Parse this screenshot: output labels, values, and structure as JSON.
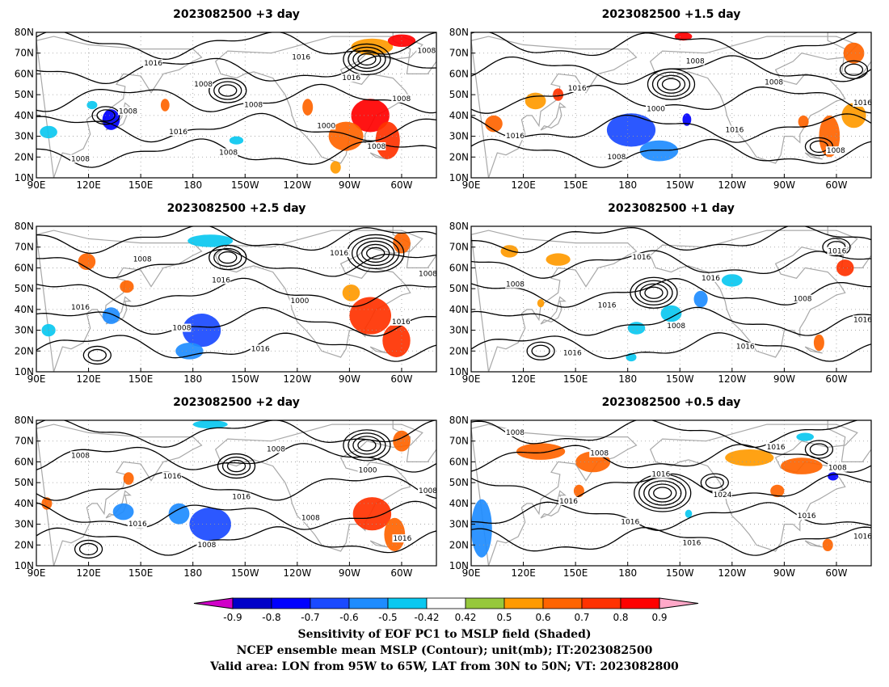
{
  "chart_data": {
    "type": "heatmap",
    "panels": [
      {
        "title": "2023082500 +3 day",
        "contour_labels": [
          "1008",
          "1008",
          "1016",
          "1016",
          "1008",
          "1008",
          "1008",
          "1016",
          "1000",
          "1016",
          "1008",
          "1008",
          "1008"
        ],
        "blobs": [
          {
            "lon": 133,
            "lat": 38,
            "rx": 5,
            "ry": 5,
            "v": -0.75
          },
          {
            "lon": 122,
            "lat": 45,
            "rx": 3,
            "ry": 2,
            "v": -0.5
          },
          {
            "lon": 97,
            "lat": 32,
            "rx": 5,
            "ry": 3,
            "v": -0.5
          },
          {
            "lon": 164,
            "lat": 45,
            "rx": 2.5,
            "ry": 3,
            "v": 0.6
          },
          {
            "lon": 205,
            "lat": 28,
            "rx": 4,
            "ry": 2,
            "v": -0.5
          },
          {
            "lon": 246,
            "lat": 44,
            "rx": 3,
            "ry": 4,
            "v": 0.6
          },
          {
            "lon": 282,
            "lat": 40,
            "rx": 11,
            "ry": 8,
            "v": 0.85
          },
          {
            "lon": 268,
            "lat": 30,
            "rx": 10,
            "ry": 7,
            "v": 0.65
          },
          {
            "lon": 292,
            "lat": 28,
            "rx": 7,
            "ry": 9,
            "v": 0.7
          },
          {
            "lon": 283,
            "lat": 73,
            "rx": 12,
            "ry": 4,
            "v": 0.5
          },
          {
            "lon": 300,
            "lat": 76,
            "rx": 8,
            "ry": 3,
            "v": 0.85
          },
          {
            "lon": 262,
            "lat": 15,
            "rx": 3,
            "ry": 3,
            "v": 0.5
          }
        ]
      },
      {
        "title": "2023082500 +1.5 day",
        "contour_labels": [
          "1016",
          "1016",
          "1008",
          "1000",
          "1008",
          "1016",
          "1008",
          "1008",
          "1016"
        ],
        "blobs": [
          {
            "lon": 182,
            "lat": 33,
            "rx": 14,
            "ry": 8,
            "v": -0.65
          },
          {
            "lon": 198,
            "lat": 23,
            "rx": 11,
            "ry": 5,
            "v": -0.55
          },
          {
            "lon": 214,
            "lat": 38,
            "rx": 2.5,
            "ry": 3,
            "v": -0.75
          },
          {
            "lon": 127,
            "lat": 47,
            "rx": 6,
            "ry": 4,
            "v": 0.55
          },
          {
            "lon": 140,
            "lat": 50,
            "rx": 3,
            "ry": 3,
            "v": 0.7
          },
          {
            "lon": 103,
            "lat": 36,
            "rx": 5,
            "ry": 4,
            "v": 0.6
          },
          {
            "lon": 296,
            "lat": 30,
            "rx": 6,
            "ry": 10,
            "v": 0.65
          },
          {
            "lon": 310,
            "lat": 40,
            "rx": 7,
            "ry": 6,
            "v": 0.55
          },
          {
            "lon": 281,
            "lat": 37,
            "rx": 3,
            "ry": 3,
            "v": 0.6
          },
          {
            "lon": 310,
            "lat": 70,
            "rx": 6,
            "ry": 5,
            "v": 0.6
          },
          {
            "lon": 212,
            "lat": 78,
            "rx": 5,
            "ry": 2,
            "v": 0.85
          }
        ]
      },
      {
        "title": "2023082500 +2.5 day",
        "contour_labels": [
          "1016",
          "1008",
          "1008",
          "1016",
          "1016",
          "1000",
          "1016",
          "1016",
          "1008"
        ],
        "blobs": [
          {
            "lon": 185,
            "lat": 30,
            "rx": 11,
            "ry": 8,
            "v": -0.65
          },
          {
            "lon": 178,
            "lat": 20,
            "rx": 8,
            "ry": 4,
            "v": -0.55
          },
          {
            "lon": 190,
            "lat": 73,
            "rx": 13,
            "ry": 3,
            "v": -0.5
          },
          {
            "lon": 133,
            "lat": 37,
            "rx": 5,
            "ry": 4,
            "v": -0.6
          },
          {
            "lon": 97,
            "lat": 30,
            "rx": 4,
            "ry": 3,
            "v": -0.5
          },
          {
            "lon": 119,
            "lat": 63,
            "rx": 5,
            "ry": 4,
            "v": 0.6
          },
          {
            "lon": 142,
            "lat": 51,
            "rx": 4,
            "ry": 3,
            "v": 0.6
          },
          {
            "lon": 282,
            "lat": 37,
            "rx": 12,
            "ry": 9,
            "v": 0.75
          },
          {
            "lon": 297,
            "lat": 25,
            "rx": 8,
            "ry": 8,
            "v": 0.7
          },
          {
            "lon": 271,
            "lat": 48,
            "rx": 5,
            "ry": 4,
            "v": 0.55
          },
          {
            "lon": 300,
            "lat": 72,
            "rx": 5,
            "ry": 5,
            "v": 0.6
          }
        ]
      },
      {
        "title": "2023082500 +1 day",
        "contour_labels": [
          "1008",
          "1016",
          "1016",
          "1016",
          "1008",
          "1016",
          "1016",
          "1008",
          "1016",
          "1016"
        ],
        "blobs": [
          {
            "lon": 205,
            "lat": 38,
            "rx": 6,
            "ry": 4,
            "v": -0.5
          },
          {
            "lon": 185,
            "lat": 31,
            "rx": 5,
            "ry": 3,
            "v": -0.5
          },
          {
            "lon": 222,
            "lat": 45,
            "rx": 4,
            "ry": 4,
            "v": -0.55
          },
          {
            "lon": 240,
            "lat": 54,
            "rx": 6,
            "ry": 3,
            "v": -0.5
          },
          {
            "lon": 182,
            "lat": 17,
            "rx": 3,
            "ry": 2,
            "v": -0.5
          },
          {
            "lon": 112,
            "lat": 68,
            "rx": 5,
            "ry": 3,
            "v": 0.5
          },
          {
            "lon": 140,
            "lat": 64,
            "rx": 7,
            "ry": 3,
            "v": 0.5
          },
          {
            "lon": 290,
            "lat": 24,
            "rx": 3,
            "ry": 4,
            "v": 0.6
          },
          {
            "lon": 305,
            "lat": 60,
            "rx": 5,
            "ry": 4,
            "v": 0.7
          },
          {
            "lon": 130,
            "lat": 43,
            "rx": 2,
            "ry": 2,
            "v": 0.5
          }
        ]
      },
      {
        "title": "2023082500 +2 day",
        "contour_labels": [
          "1008",
          "1016",
          "1016",
          "1008",
          "1016",
          "1008",
          "1008",
          "1000",
          "1016",
          "1008"
        ],
        "blobs": [
          {
            "lon": 190,
            "lat": 30,
            "rx": 12,
            "ry": 8,
            "v": -0.65
          },
          {
            "lon": 172,
            "lat": 35,
            "rx": 6,
            "ry": 5,
            "v": -0.55
          },
          {
            "lon": 140,
            "lat": 36,
            "rx": 6,
            "ry": 4,
            "v": -0.55
          },
          {
            "lon": 190,
            "lat": 78,
            "rx": 10,
            "ry": 2,
            "v": -0.5
          },
          {
            "lon": 283,
            "lat": 35,
            "rx": 11,
            "ry": 8,
            "v": 0.75
          },
          {
            "lon": 296,
            "lat": 25,
            "rx": 6,
            "ry": 8,
            "v": 0.65
          },
          {
            "lon": 96,
            "lat": 40,
            "rx": 3,
            "ry": 3,
            "v": 0.6
          },
          {
            "lon": 143,
            "lat": 52,
            "rx": 3,
            "ry": 3,
            "v": 0.6
          },
          {
            "lon": 300,
            "lat": 70,
            "rx": 5,
            "ry": 5,
            "v": 0.6
          }
        ]
      },
      {
        "title": "2023082500 +0.5 day",
        "contour_labels": [
          "1008",
          "1016",
          "1008",
          "1016",
          "1016",
          "1016",
          "1024",
          "1016",
          "1016",
          "1008",
          "1016"
        ],
        "blobs": [
          {
            "lon": 96,
            "lat": 28,
            "rx": 6,
            "ry": 14,
            "v": -0.6
          },
          {
            "lon": 130,
            "lat": 65,
            "rx": 14,
            "ry": 4,
            "v": 0.6
          },
          {
            "lon": 160,
            "lat": 60,
            "rx": 10,
            "ry": 5,
            "v": 0.65
          },
          {
            "lon": 152,
            "lat": 46,
            "rx": 3,
            "ry": 3,
            "v": 0.65
          },
          {
            "lon": 250,
            "lat": 62,
            "rx": 14,
            "ry": 4,
            "v": 0.55
          },
          {
            "lon": 280,
            "lat": 58,
            "rx": 12,
            "ry": 4,
            "v": 0.6
          },
          {
            "lon": 266,
            "lat": 46,
            "rx": 4,
            "ry": 3,
            "v": 0.6
          },
          {
            "lon": 298,
            "lat": 53,
            "rx": 3,
            "ry": 2,
            "v": -0.75
          },
          {
            "lon": 282,
            "lat": 72,
            "rx": 5,
            "ry": 2,
            "v": -0.5
          },
          {
            "lon": 295,
            "lat": 20,
            "rx": 3,
            "ry": 3,
            "v": 0.6
          },
          {
            "lon": 215,
            "lat": 35,
            "rx": 2,
            "ry": 2,
            "v": -0.5
          }
        ]
      }
    ],
    "x_ticks": [
      "90E",
      "120E",
      "150E",
      "180",
      "150W",
      "120W",
      "90W",
      "60W"
    ],
    "y_ticks": [
      "80N",
      "70N",
      "60N",
      "50N",
      "40N",
      "30N",
      "20N",
      "10N"
    ],
    "xlim_lon_east": [
      90,
      320
    ],
    "ylim_lat": [
      10,
      80
    ],
    "colorbar": {
      "levels": [
        "-0.9",
        "-0.8",
        "-0.7",
        "-0.6",
        "-0.5",
        "-0.42",
        "0.42",
        "0.5",
        "0.6",
        "0.7",
        "0.8",
        "0.9"
      ],
      "colors": [
        "#d000c8",
        "#0000c8",
        "#0000ff",
        "#1a4aff",
        "#1e8cff",
        "#0ac8f0",
        "#ffffff",
        "#96c83c",
        "#ff9a00",
        "#ff6400",
        "#ff3200",
        "#ff0000",
        "#ffa8c8"
      ]
    },
    "colors": {
      "land": "#a8a8a8",
      "contour": "#000000"
    },
    "grid": true
  },
  "caption": {
    "line1": "Sensitivity of EOF PC1 to MSLP field (Shaded)",
    "line2": "NCEP ensemble mean MSLP (Contour); unit(mb); IT:2023082500",
    "line3": "Valid area: LON from 95W to 65W, LAT from 30N to 50N; VT: 2023082800"
  }
}
